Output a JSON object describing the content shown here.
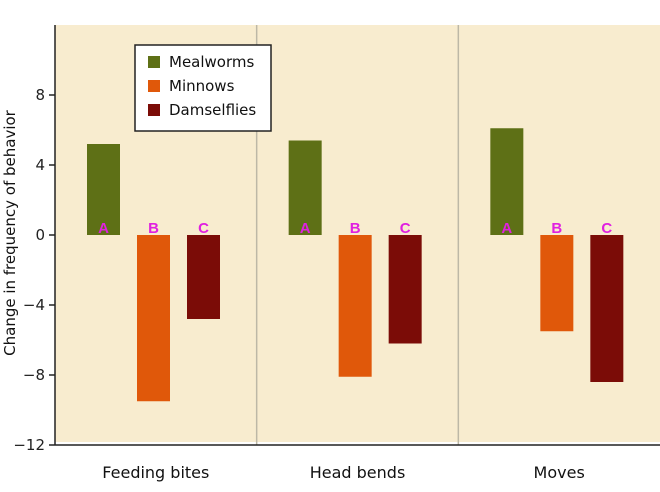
{
  "chart_data": {
    "type": "bar",
    "categories": [
      "Feeding bites",
      "Head bends",
      "Moves"
    ],
    "ylabel": "Change in frequency of behavior",
    "xlabel": "",
    "title": "",
    "ylim": [
      -12,
      12
    ],
    "yticks": [
      8,
      4,
      0,
      -4,
      -8,
      -12
    ],
    "ytick_labels": [
      "8",
      "4",
      "0",
      "−4",
      "−8",
      "−12"
    ],
    "legend_position": "top-left",
    "grid": false,
    "series": [
      {
        "name": "Mealworms",
        "color": "#5e7016",
        "annotation": "A",
        "values": [
          5.2,
          5.4,
          6.1
        ]
      },
      {
        "name": "Minnows",
        "color": "#e0580a",
        "annotation": "B",
        "values": [
          -9.5,
          -8.1,
          -5.5
        ]
      },
      {
        "name": "Damselflies",
        "color": "#7b0c07",
        "annotation": "C",
        "values": [
          -4.8,
          -6.2,
          -8.4
        ]
      }
    ],
    "colors": {
      "plot_background": "#f8eccf",
      "divider": "#bdb8a6",
      "axis": "#222222",
      "annotation": "#e020e0"
    }
  }
}
